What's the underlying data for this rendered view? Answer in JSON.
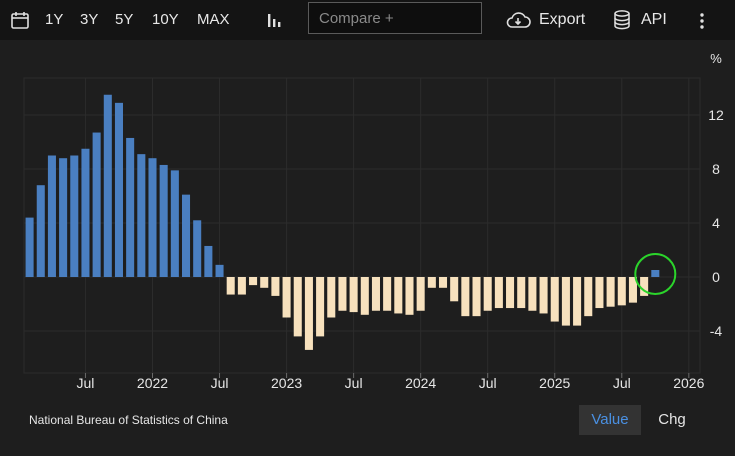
{
  "toolbar": {
    "ranges": [
      "1Y",
      "3Y",
      "5Y",
      "10Y",
      "MAX"
    ],
    "compare_placeholder": "Compare +",
    "export_label": "Export",
    "api_label": "API"
  },
  "footer": {
    "source": "National Bureau of Statistics of China",
    "value_label": "Value",
    "chg_label": "Chg"
  },
  "colors": {
    "positive": "#4a7fc1",
    "negative": "#f7e1bd",
    "highlight": "#2bd42b",
    "grid": "#2c2c2c"
  },
  "chart_data": {
    "type": "bar",
    "unit": "%",
    "ylim": [
      -7,
      15
    ],
    "yticks": [
      12,
      8,
      4,
      0,
      -4
    ],
    "x_tick_labels": [
      "Jul",
      "2022",
      "Jul",
      "2023",
      "Jul",
      "2024",
      "Jul",
      "2025",
      "Jul",
      "2026"
    ],
    "x_tick_months": [
      6,
      12,
      18,
      24,
      30,
      36,
      42,
      48,
      54,
      60
    ],
    "start_month": "2021-02",
    "latest_value": 0.4,
    "values": [
      4.4,
      6.8,
      9.0,
      8.8,
      9.0,
      9.5,
      10.7,
      13.5,
      12.9,
      10.3,
      9.1,
      8.8,
      8.3,
      7.9,
      6.1,
      4.2,
      2.3,
      0.9,
      -1.3,
      -1.3,
      -0.6,
      -0.8,
      -1.4,
      -3.0,
      -4.4,
      -5.4,
      -4.4,
      -3.0,
      -2.5,
      -2.6,
      -2.8,
      -2.5,
      -2.5,
      -2.7,
      -2.8,
      -2.5,
      -0.8,
      -0.8,
      -1.8,
      -2.9,
      -2.9,
      -2.5,
      -2.3,
      -2.3,
      -2.3,
      -2.5,
      -2.7,
      -3.3,
      -3.6,
      -3.6,
      -2.9,
      -2.3,
      -2.2,
      -2.1,
      -1.9,
      -1.4,
      0.4
    ],
    "title": "",
    "xlabel": "",
    "ylabel": "%"
  }
}
